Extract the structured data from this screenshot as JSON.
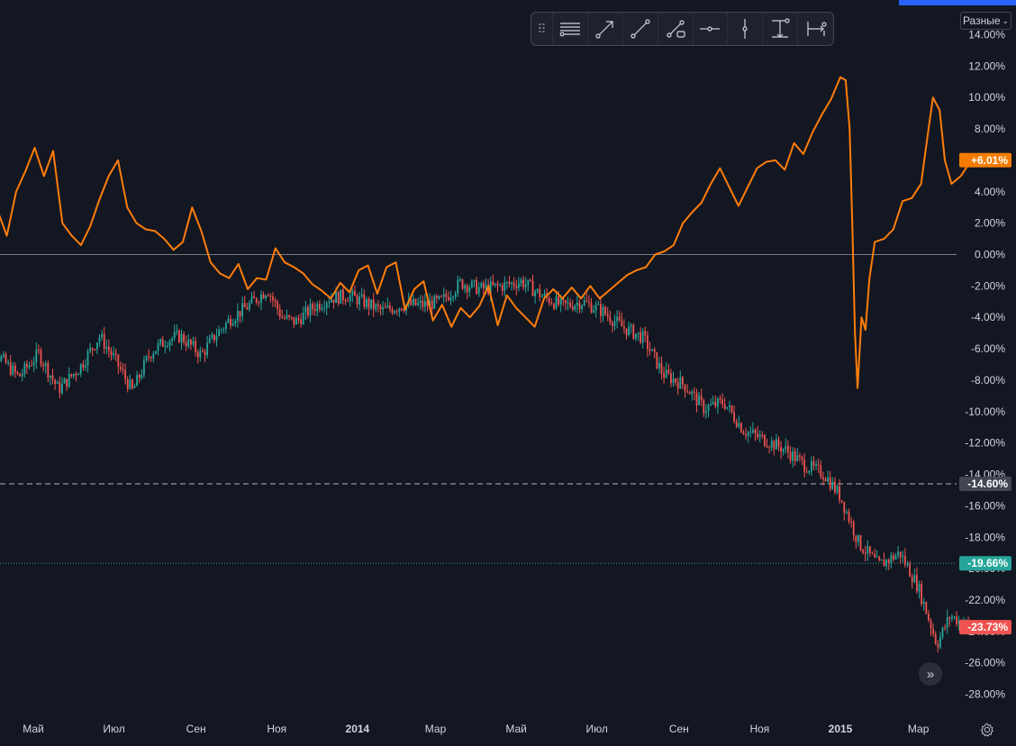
{
  "colors": {
    "background": "#131722",
    "orange_line": "#ff7d0a",
    "candle_up": "#26a69a",
    "candle_down": "#ef5350",
    "zero_line": "#787b86",
    "dashed_line": "#b2b5be",
    "dotted_line": "#26a69a",
    "label_orange": "#f57c00",
    "label_gray": "#434651",
    "label_teal": "#26a69a",
    "label_red": "#ef5350"
  },
  "toolbar": {
    "handle_icon": "drag-handle-icon",
    "tools": [
      {
        "name": "horizontal-lines-tool",
        "icon": "horizontal-lines-icon"
      },
      {
        "name": "arrow-tool",
        "icon": "arrow-line-icon"
      },
      {
        "name": "trend-line-tool",
        "icon": "trend-line-icon"
      },
      {
        "name": "extended-line-tool",
        "icon": "extended-line-icon"
      },
      {
        "name": "horizontal-ray-tool",
        "icon": "horizontal-ray-icon"
      },
      {
        "name": "vertical-line-tool",
        "icon": "vertical-line-icon"
      },
      {
        "name": "price-range-tool",
        "icon": "price-range-icon"
      },
      {
        "name": "date-range-tool",
        "icon": "date-range-icon"
      }
    ]
  },
  "scale_mode": {
    "label": "Разные",
    "icon": "chevron-down-icon"
  },
  "scroll_button": {
    "icon": "double-chevron-right-icon",
    "glyph": "»"
  },
  "settings_button": {
    "icon": "gear-icon"
  },
  "chart_data": {
    "type": "line",
    "y_axis": {
      "unit": "%",
      "ylim": [
        -29,
        15
      ],
      "ticks": [
        "14.00%",
        "12.00%",
        "10.00%",
        "8.00%",
        "6.00%",
        "4.00%",
        "2.00%",
        "0.00%",
        "-2.00%",
        "-4.00%",
        "-6.00%",
        "-8.00%",
        "-10.00%",
        "-12.00%",
        "-14.00%",
        "-16.00%",
        "-18.00%",
        "-20.00%",
        "-22.00%",
        "-24.00%",
        "-26.00%",
        "-28.00%"
      ],
      "tick_values": [
        14,
        12,
        10,
        8,
        6,
        4,
        2,
        0,
        -2,
        -4,
        -6,
        -8,
        -10,
        -12,
        -14,
        -16,
        -18,
        -20,
        -22,
        -24,
        -26,
        -28
      ]
    },
    "x_axis": {
      "ticks": [
        {
          "label": "Май",
          "bold": false
        },
        {
          "label": "Июл",
          "bold": false
        },
        {
          "label": "Сен",
          "bold": false
        },
        {
          "label": "Ноя",
          "bold": false
        },
        {
          "label": "2014",
          "bold": true
        },
        {
          "label": "Мар",
          "bold": false
        },
        {
          "label": "Май",
          "bold": false
        },
        {
          "label": "Июл",
          "bold": false
        },
        {
          "label": "Сен",
          "bold": false
        },
        {
          "label": "Ноя",
          "bold": false
        },
        {
          "label": "2015",
          "bold": true
        },
        {
          "label": "Мар",
          "bold": false
        }
      ],
      "tick_dates": [
        "2013-05-01",
        "2013-07-01",
        "2013-09-01",
        "2013-11-01",
        "2014-01-01",
        "2014-03-01",
        "2014-05-01",
        "2014-07-01",
        "2014-09-01",
        "2014-11-01",
        "2015-01-01",
        "2015-03-01"
      ],
      "range": [
        "2013-03-20",
        "2015-04-15"
      ]
    },
    "reference_lines": [
      {
        "value": 0,
        "style": "solid"
      },
      {
        "value": -14.6,
        "style": "dashed"
      },
      {
        "value": -19.66,
        "style": "dotted"
      }
    ],
    "price_labels": [
      {
        "text": "+6.01%",
        "value": 6.01,
        "color_key": "label_orange"
      },
      {
        "text": "-14.60%",
        "value": -14.6,
        "color_key": "label_gray"
      },
      {
        "text": "-19.66%",
        "value": -19.66,
        "color_key": "label_teal"
      },
      {
        "text": "-23.73%",
        "value": -23.73,
        "color_key": "label_red"
      }
    ],
    "series": [
      {
        "style": "line",
        "color_key": "orange_line",
        "points": [
          [
            "2013-03-20",
            2.0
          ],
          [
            "2013-03-28",
            0.8
          ],
          [
            "2013-04-04",
            2.8
          ],
          [
            "2013-04-11",
            1.2
          ],
          [
            "2013-04-18",
            4.0
          ],
          [
            "2013-04-25",
            5.3
          ],
          [
            "2013-05-02",
            6.8
          ],
          [
            "2013-05-09",
            5.0
          ],
          [
            "2013-05-16",
            6.6
          ],
          [
            "2013-05-23",
            2.0
          ],
          [
            "2013-05-30",
            1.2
          ],
          [
            "2013-06-06",
            0.6
          ],
          [
            "2013-06-13",
            1.8
          ],
          [
            "2013-06-20",
            3.5
          ],
          [
            "2013-06-27",
            5.0
          ],
          [
            "2013-07-04",
            6.0
          ],
          [
            "2013-07-11",
            3.0
          ],
          [
            "2013-07-18",
            2.0
          ],
          [
            "2013-07-25",
            1.6
          ],
          [
            "2013-08-01",
            1.5
          ],
          [
            "2013-08-08",
            1.0
          ],
          [
            "2013-08-15",
            0.3
          ],
          [
            "2013-08-22",
            0.8
          ],
          [
            "2013-08-29",
            3.0
          ],
          [
            "2013-09-05",
            1.5
          ],
          [
            "2013-09-12",
            -0.5
          ],
          [
            "2013-09-19",
            -1.2
          ],
          [
            "2013-09-26",
            -1.5
          ],
          [
            "2013-10-03",
            -0.6
          ],
          [
            "2013-10-10",
            -2.2
          ],
          [
            "2013-10-17",
            -1.5
          ],
          [
            "2013-10-24",
            -1.6
          ],
          [
            "2013-10-31",
            0.4
          ],
          [
            "2013-11-07",
            -0.5
          ],
          [
            "2013-11-14",
            -0.8
          ],
          [
            "2013-11-21",
            -1.2
          ],
          [
            "2013-11-28",
            -1.9
          ],
          [
            "2013-12-05",
            -2.3
          ],
          [
            "2013-12-12",
            -2.8
          ],
          [
            "2013-12-19",
            -1.8
          ],
          [
            "2013-12-26",
            -2.4
          ],
          [
            "2014-01-02",
            -1.0
          ],
          [
            "2014-01-09",
            -0.7
          ],
          [
            "2014-01-16",
            -2.5
          ],
          [
            "2014-01-23",
            -0.8
          ],
          [
            "2014-01-30",
            -0.5
          ],
          [
            "2014-02-06",
            -3.5
          ],
          [
            "2014-02-13",
            -2.2
          ],
          [
            "2014-02-20",
            -1.7
          ],
          [
            "2014-02-27",
            -4.2
          ],
          [
            "2014-03-06",
            -3.2
          ],
          [
            "2014-03-13",
            -4.6
          ],
          [
            "2014-03-20",
            -3.4
          ],
          [
            "2014-03-27",
            -4.0
          ],
          [
            "2014-04-03",
            -3.3
          ],
          [
            "2014-04-10",
            -2.0
          ],
          [
            "2014-04-17",
            -4.5
          ],
          [
            "2014-04-24",
            -2.6
          ],
          [
            "2014-05-01",
            -3.4
          ],
          [
            "2014-05-08",
            -4.0
          ],
          [
            "2014-05-15",
            -4.6
          ],
          [
            "2014-05-22",
            -2.8
          ],
          [
            "2014-05-29",
            -2.2
          ],
          [
            "2014-06-05",
            -2.8
          ],
          [
            "2014-06-12",
            -2.1
          ],
          [
            "2014-06-19",
            -2.8
          ],
          [
            "2014-06-26",
            -2.0
          ],
          [
            "2014-07-03",
            -2.8
          ],
          [
            "2014-07-10",
            -2.3
          ],
          [
            "2014-07-17",
            -1.8
          ],
          [
            "2014-07-24",
            -1.3
          ],
          [
            "2014-07-31",
            -1.0
          ],
          [
            "2014-08-07",
            -0.8
          ],
          [
            "2014-08-14",
            0.0
          ],
          [
            "2014-08-21",
            0.2
          ],
          [
            "2014-08-28",
            0.6
          ],
          [
            "2014-09-04",
            2.0
          ],
          [
            "2014-09-11",
            2.7
          ],
          [
            "2014-09-18",
            3.3
          ],
          [
            "2014-09-25",
            4.5
          ],
          [
            "2014-10-02",
            5.5
          ],
          [
            "2014-10-09",
            4.3
          ],
          [
            "2014-10-16",
            3.1
          ],
          [
            "2014-10-23",
            4.3
          ],
          [
            "2014-10-30",
            5.5
          ],
          [
            "2014-11-06",
            5.9
          ],
          [
            "2014-11-13",
            6.0
          ],
          [
            "2014-11-20",
            5.4
          ],
          [
            "2014-11-27",
            7.1
          ],
          [
            "2014-12-04",
            6.4
          ],
          [
            "2014-12-11",
            7.8
          ],
          [
            "2014-12-18",
            8.9
          ],
          [
            "2014-12-25",
            9.9
          ],
          [
            "2015-01-01",
            11.3
          ],
          [
            "2015-01-05",
            11.1
          ],
          [
            "2015-01-08",
            8.0
          ],
          [
            "2015-01-10",
            2.0
          ],
          [
            "2015-01-12",
            -5.0
          ],
          [
            "2015-01-14",
            -8.5
          ],
          [
            "2015-01-17",
            -4.0
          ],
          [
            "2015-01-20",
            -4.8
          ],
          [
            "2015-01-23",
            -1.5
          ],
          [
            "2015-01-27",
            0.8
          ],
          [
            "2015-02-03",
            1.0
          ],
          [
            "2015-02-10",
            1.6
          ],
          [
            "2015-02-17",
            3.4
          ],
          [
            "2015-02-24",
            3.6
          ],
          [
            "2015-03-03",
            4.5
          ],
          [
            "2015-03-07",
            7.0
          ],
          [
            "2015-03-12",
            10.0
          ],
          [
            "2015-03-17",
            9.2
          ],
          [
            "2015-03-21",
            6.0
          ],
          [
            "2015-03-26",
            4.5
          ],
          [
            "2015-04-02",
            5.0
          ],
          [
            "2015-04-10",
            6.01
          ]
        ]
      },
      {
        "style": "candles",
        "points": [
          [
            "2013-03-20",
            -7.2
          ],
          [
            "2013-04-05",
            -6.5
          ],
          [
            "2013-04-20",
            -7.8
          ],
          [
            "2013-05-05",
            -6.3
          ],
          [
            "2013-05-20",
            -8.6
          ],
          [
            "2013-06-05",
            -7.2
          ],
          [
            "2013-06-20",
            -5.2
          ],
          [
            "2013-07-01",
            -6.6
          ],
          [
            "2013-07-15",
            -8.7
          ],
          [
            "2013-07-28",
            -6.3
          ],
          [
            "2013-08-10",
            -5.4
          ],
          [
            "2013-08-20",
            -5.2
          ],
          [
            "2013-09-05",
            -6.4
          ],
          [
            "2013-09-15",
            -5.2
          ],
          [
            "2013-09-28",
            -4.0
          ],
          [
            "2013-10-10",
            -3.3
          ],
          [
            "2013-10-25",
            -2.2
          ],
          [
            "2013-11-05",
            -4.0
          ],
          [
            "2013-11-15",
            -4.3
          ],
          [
            "2013-11-28",
            -3.4
          ],
          [
            "2013-12-10",
            -2.8
          ],
          [
            "2013-12-25",
            -2.6
          ],
          [
            "2014-01-05",
            -3.0
          ],
          [
            "2014-01-20",
            -3.6
          ],
          [
            "2014-02-05",
            -3.2
          ],
          [
            "2014-02-20",
            -3.2
          ],
          [
            "2014-03-05",
            -3.0
          ],
          [
            "2014-03-20",
            -1.8
          ],
          [
            "2014-04-05",
            -2.2
          ],
          [
            "2014-04-20",
            -2.0
          ],
          [
            "2014-05-05",
            -1.7
          ],
          [
            "2014-05-20",
            -2.6
          ],
          [
            "2014-06-05",
            -3.3
          ],
          [
            "2014-06-20",
            -3.0
          ],
          [
            "2014-07-05",
            -3.6
          ],
          [
            "2014-07-20",
            -4.6
          ],
          [
            "2014-08-05",
            -5.3
          ],
          [
            "2014-08-20",
            -7.6
          ],
          [
            "2014-09-05",
            -8.3
          ],
          [
            "2014-09-20",
            -9.8
          ],
          [
            "2014-10-05",
            -9.4
          ],
          [
            "2014-10-20",
            -11.2
          ],
          [
            "2014-11-05",
            -11.8
          ],
          [
            "2014-11-20",
            -12.4
          ],
          [
            "2014-12-05",
            -13.4
          ],
          [
            "2014-12-20",
            -14.0
          ],
          [
            "2015-01-01",
            -15.4
          ],
          [
            "2015-01-15",
            -18.4
          ],
          [
            "2015-01-30",
            -19.8
          ],
          [
            "2015-02-15",
            -19.0
          ],
          [
            "2015-03-01",
            -21.2
          ],
          [
            "2015-03-15",
            -24.8
          ],
          [
            "2015-03-25",
            -23.0
          ],
          [
            "2015-04-10",
            -23.73
          ]
        ]
      }
    ]
  }
}
